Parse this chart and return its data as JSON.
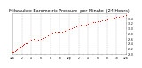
{
  "title": "Milwaukee Barometric Pressure  per Minute  (24 Hours)",
  "title_fontsize": 3.5,
  "bg_color": "#ffffff",
  "plot_bg_color": "#ffffff",
  "grid_color": "#bbbbbb",
  "dot_color": "#ff0000",
  "dot_size": 0.5,
  "ylim": [
    29.0,
    30.6
  ],
  "xlim": [
    0,
    1440
  ],
  "yticks": [
    29.0,
    29.2,
    29.4,
    29.6,
    29.8,
    30.0,
    30.2,
    30.4
  ],
  "ytick_labels": [
    "29.0",
    "29.2",
    "29.4",
    "29.6",
    "29.8",
    "30.0",
    "30.2",
    "30.4"
  ],
  "xtick_positions": [
    0,
    60,
    120,
    180,
    240,
    300,
    360,
    420,
    480,
    540,
    600,
    660,
    720,
    780,
    840,
    900,
    960,
    1020,
    1080,
    1140,
    1200,
    1260,
    1320,
    1380,
    1440
  ],
  "xtick_labels": [
    "12a",
    "1",
    "2",
    "3",
    "4",
    "5",
    "6",
    "7",
    "8",
    "9",
    "10",
    "11",
    "12p",
    "1",
    "2",
    "3",
    "4",
    "5",
    "6",
    "7",
    "8",
    "9",
    "10",
    "11",
    "12a"
  ],
  "vgrid_positions": [
    120,
    240,
    360,
    480,
    600,
    720,
    840,
    960,
    1080,
    1200,
    1320
  ],
  "data_x": [
    0,
    15,
    30,
    45,
    60,
    75,
    90,
    105,
    120,
    135,
    150,
    165,
    180,
    210,
    240,
    270,
    300,
    330,
    360,
    390,
    420,
    450,
    480,
    510,
    540,
    570,
    600,
    630,
    660,
    690,
    720,
    750,
    780,
    810,
    840,
    870,
    900,
    930,
    960,
    990,
    1020,
    1050,
    1080,
    1110,
    1140,
    1170,
    1200,
    1230,
    1260,
    1290,
    1320,
    1350,
    1380,
    1410,
    1440
  ],
  "data_y": [
    29.05,
    29.07,
    29.1,
    29.13,
    29.16,
    29.19,
    29.22,
    29.26,
    29.3,
    29.34,
    29.37,
    29.4,
    29.43,
    29.5,
    29.54,
    29.57,
    29.5,
    29.54,
    29.58,
    29.63,
    29.67,
    29.72,
    29.77,
    29.82,
    29.85,
    29.86,
    29.88,
    29.87,
    29.9,
    29.93,
    29.97,
    30.0,
    30.03,
    30.07,
    30.1,
    30.13,
    30.12,
    30.14,
    30.17,
    30.2,
    30.23,
    30.25,
    30.27,
    30.28,
    30.3,
    30.33,
    30.35,
    30.38,
    30.4,
    30.43,
    30.45,
    30.46,
    30.48,
    30.5,
    30.52
  ]
}
